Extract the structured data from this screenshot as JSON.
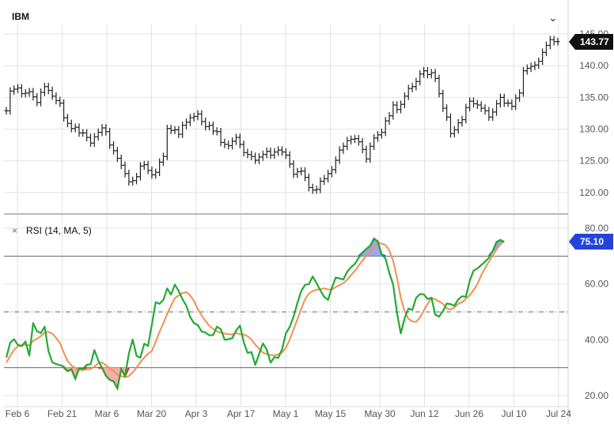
{
  "chart_data": [
    {
      "type": "ohlc",
      "title": "IBM",
      "ylim": [
        117,
        146
      ],
      "yticks": [
        120,
        125,
        130,
        135,
        140,
        145
      ],
      "ytick_labels": [
        "120.00",
        "125.00",
        "130.00",
        "135.00",
        "140.00",
        "145.00"
      ],
      "last_price": 143.77,
      "last_price_label": "143.77",
      "series": [
        {
          "name": "IBM",
          "values": [
            132.9,
            136.0,
            136.3,
            136.5,
            135.6,
            135.7,
            135.9,
            135.1,
            134.2,
            135.8,
            136.7,
            136.1,
            135.2,
            134.5,
            134.1,
            131.8,
            130.9,
            130.1,
            130.3,
            129.4,
            129.4,
            128.7,
            127.8,
            128.8,
            129.5,
            130.2,
            129.6,
            127.5,
            126.6,
            125.4,
            124.3,
            123.0,
            121.7,
            121.9,
            122.5,
            124.2,
            124.4,
            123.5,
            122.8,
            123.2,
            124.8,
            125.7,
            130.1,
            129.8,
            129.9,
            129.2,
            130.6,
            131.1,
            131.8,
            132.0,
            132.4,
            131.2,
            130.4,
            130.6,
            129.7,
            129.6,
            127.9,
            127.6,
            127.4,
            128.1,
            128.7,
            127.6,
            126.3,
            126.0,
            125.7,
            125.1,
            125.6,
            126.0,
            126.5,
            125.9,
            126.4,
            126.7,
            126.4,
            125.9,
            124.5,
            122.9,
            123.3,
            123.4,
            122.4,
            120.8,
            120.4,
            120.5,
            121.8,
            122.2,
            123.0,
            123.6,
            125.1,
            126.7,
            127.3,
            128.2,
            128.4,
            128.5,
            128.0,
            126.8,
            125.3,
            127.3,
            128.6,
            129.1,
            129.5,
            131.3,
            132.1,
            133.8,
            133.1,
            133.9,
            135.2,
            136.4,
            136.7,
            137.5,
            138.7,
            139.2,
            138.6,
            138.9,
            138.0,
            135.6,
            133.3,
            131.9,
            129.3,
            129.9,
            131.0,
            131.5,
            133.4,
            134.4,
            134.0,
            133.8,
            133.3,
            132.9,
            131.9,
            132.7,
            134.0,
            135.0,
            134.1,
            134.1,
            133.6,
            134.9,
            135.7,
            139.2,
            139.6,
            139.9,
            140.1,
            140.7,
            142.1,
            143.2,
            144.1,
            143.8,
            143.8
          ]
        }
      ]
    },
    {
      "type": "line",
      "title": "RSI (14, MA, 5)",
      "ylim": [
        16,
        82
      ],
      "yticks": [
        20,
        40,
        60,
        80
      ],
      "ytick_labels": [
        "20.00",
        "40.00",
        "60.00",
        "80.00"
      ],
      "overbought": 70,
      "oversold": 30,
      "midline": 50,
      "last_value": 75.1,
      "last_value_label": "75.10",
      "series": [
        {
          "name": "RSI",
          "values": [
            33.6,
            38.9,
            40.2,
            38.2,
            37.7,
            39.4,
            34.3,
            46.0,
            43.1,
            42.4,
            44.7,
            36.0,
            31.9,
            31.3,
            30.9,
            30.4,
            28.7,
            29.4,
            26.0,
            29.7,
            29.6,
            31.0,
            31.2,
            36.3,
            32.6,
            29.9,
            27.1,
            25.6,
            25.1,
            22.6,
            29.5,
            26.9,
            35.1,
            40.1,
            34.2,
            33.6,
            38.6,
            37.8,
            45.4,
            53.5,
            52.9,
            54.3,
            58.4,
            56.2,
            59.8,
            57.5,
            54.5,
            52.2,
            48.2,
            45.9,
            45.3,
            42.9,
            42.6,
            41.6,
            41.7,
            44.7,
            43.8,
            40.0,
            40.2,
            40.6,
            43.3,
            45.1,
            39.1,
            35.3,
            35.6,
            31.0,
            34.9,
            38.7,
            36.5,
            31.8,
            33.8,
            33.5,
            36.6,
            42.3,
            44.6,
            48.3,
            53.2,
            57.5,
            59.7,
            60.0,
            62.7,
            60.3,
            57.7,
            55.4,
            54.3,
            58.6,
            62.3,
            62.0,
            61.6,
            64.4,
            66.0,
            67.2,
            69.4,
            71.3,
            72.6,
            73.7,
            76.3,
            75.3,
            70.6,
            69.1,
            64.0,
            59.8,
            49.7,
            42.3,
            47.7,
            51.2,
            50.7,
            55.0,
            56.4,
            56.3,
            54.6,
            55.1,
            49.0,
            48.3,
            50.3,
            53.0,
            52.8,
            52.2,
            54.5,
            55.6,
            55.4,
            61.2,
            64.8,
            65.6,
            66.8,
            68.0,
            69.4,
            71.8,
            75.1,
            75.8,
            75.1
          ]
        },
        {
          "name": "MA",
          "values": [
            31.8,
            34.2,
            36.3,
            37.7,
            38.1,
            38.3,
            38.0,
            39.6,
            40.4,
            41.3,
            42.6,
            42.8,
            42.2,
            40.7,
            38.8,
            35.4,
            32.4,
            30.8,
            29.9,
            29.3,
            29.1,
            29.4,
            29.5,
            30.4,
            31.6,
            31.9,
            30.9,
            29.8,
            28.8,
            27.5,
            27.0,
            26.5,
            27.0,
            28.3,
            30.1,
            31.9,
            33.6,
            35.0,
            36.0,
            39.3,
            42.8,
            45.9,
            49.3,
            52.2,
            54.9,
            55.9,
            56.8,
            57.1,
            55.9,
            53.9,
            51.0,
            48.7,
            46.8,
            45.0,
            43.9,
            43.0,
            42.6,
            42.2,
            42.0,
            41.9,
            42.4,
            42.0,
            41.9,
            41.3,
            40.1,
            38.3,
            36.8,
            35.4,
            34.9,
            34.5,
            34.4,
            34.8,
            35.5,
            37.1,
            40.0,
            43.8,
            47.4,
            51.0,
            54.5,
            56.6,
            57.5,
            58.0,
            58.1,
            58.5,
            58.0,
            58.1,
            58.9,
            59.6,
            60.3,
            61.5,
            63.2,
            64.7,
            66.6,
            68.4,
            70.2,
            71.8,
            73.2,
            74.8,
            74.5,
            74.0,
            72.1,
            68.3,
            62.3,
            55.1,
            50.2,
            47.5,
            46.6,
            46.4,
            48.0,
            50.5,
            52.8,
            55.0,
            54.5,
            53.8,
            52.9,
            51.3,
            50.8,
            51.6,
            52.9,
            53.5,
            54.7,
            56.0,
            57.8,
            60.0,
            63.1,
            65.7,
            68.0,
            70.2,
            72.4,
            74.3,
            75.4
          ]
        }
      ]
    }
  ],
  "x_axis": {
    "ticks": [
      "Feb 6",
      "Feb 21",
      "Mar 6",
      "Mar 20",
      "Apr 3",
      "Apr 17",
      "May 1",
      "May 15",
      "May 30",
      "Jun 12",
      "Jun 26",
      "Jul 10",
      "Jul 24"
    ]
  },
  "colors": {
    "price_bar": "#222222",
    "rsi_line": "#22aa33",
    "ma_line": "#f09050",
    "overbought_fill": "#8899e8",
    "overbought_stroke": "#2244dd",
    "oversold_fill": "#f4a0a0",
    "oversold_stroke": "#ee2233",
    "rsi_badge": "#2244dd",
    "price_badge": "#111111",
    "grid": "#e2e2e2"
  },
  "icons": {
    "collapse": "chevron-down-icon",
    "remove_indicator": "close-icon"
  }
}
